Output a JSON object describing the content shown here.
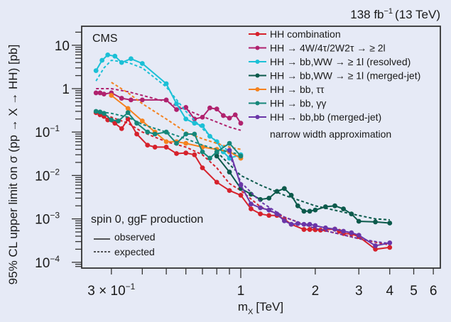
{
  "chart_data": {
    "type": "line",
    "experiment_label": "CMS",
    "lumi_label": "138 fb",
    "lumi_exp": "−1",
    "lumi_energy": "(13 TeV)",
    "xlabel_main": "m",
    "xlabel_sub": "X",
    "xlabel_unit": "[TeV]",
    "ylabel": "95% CL upper limit on σ (pp → X → HH) [pb]",
    "xscale": "log",
    "yscale": "log",
    "xlim": [
      0.25,
      6.5
    ],
    "ylim": [
      7e-05,
      30
    ],
    "x_ticks": [
      {
        "value": 0.3,
        "label": "3 × 10",
        "exp": "−1"
      },
      {
        "value": 1,
        "label": "1",
        "exp": ""
      },
      {
        "value": 2,
        "label": "2",
        "exp": ""
      },
      {
        "value": 3,
        "label": "3",
        "exp": ""
      },
      {
        "value": 4,
        "label": "4",
        "exp": ""
      },
      {
        "value": 5,
        "label": "5",
        "exp": ""
      },
      {
        "value": 6,
        "label": "6",
        "exp": ""
      }
    ],
    "y_ticks": [
      {
        "value": 10,
        "label": "10",
        "exp": ""
      },
      {
        "value": 1,
        "label": "1",
        "exp": ""
      },
      {
        "value": 0.1,
        "label": "10",
        "exp": "−1"
      },
      {
        "value": 0.01,
        "label": "10",
        "exp": "−2"
      },
      {
        "value": 0.001,
        "label": "10",
        "exp": "−3"
      },
      {
        "value": 0.0001,
        "label": "10",
        "exp": "−4"
      }
    ],
    "annotation_title": "spin 0, ggF production",
    "style_legend": [
      {
        "style": "solid",
        "label": "observed"
      },
      {
        "style": "dashed",
        "label": "expected"
      }
    ],
    "legend_note": "narrow width approximation",
    "legend_position": "top-right",
    "series": [
      {
        "name": "HH combination",
        "color": "#d6222c",
        "observed": {
          "x": [
            0.26,
            0.27,
            0.28,
            0.29,
            0.31,
            0.33,
            0.35,
            0.38,
            0.42,
            0.45,
            0.5,
            0.55,
            0.6,
            0.65,
            0.7,
            0.8,
            0.9,
            1.0,
            1.1,
            1.2,
            1.3,
            1.4,
            1.5,
            1.6,
            1.8,
            1.9,
            2.0,
            2.1,
            2.2,
            2.4,
            2.5,
            2.6,
            2.8,
            3.0,
            3.5,
            4.0
          ],
          "y": [
            0.28,
            0.25,
            0.23,
            0.19,
            0.16,
            0.12,
            0.2,
            0.09,
            0.05,
            0.045,
            0.045,
            0.032,
            0.033,
            0.03,
            0.015,
            0.007,
            0.0045,
            0.0035,
            0.0017,
            0.0013,
            0.0012,
            0.0012,
            0.00098,
            0.00075,
            0.00057,
            0.00057,
            0.00056,
            0.00055,
            0.00057,
            0.00058,
            0.00052,
            0.00046,
            0.00045,
            0.00039,
            0.0002,
            0.00022
          ]
        },
        "expected": {
          "x": [
            0.26,
            0.3,
            0.35,
            0.4,
            0.5,
            0.6,
            0.7,
            0.8,
            0.9,
            1.0,
            1.2,
            1.5,
            2.0,
            2.5,
            3.0,
            3.5,
            4.0
          ],
          "y": [
            0.28,
            0.22,
            0.16,
            0.1,
            0.06,
            0.045,
            0.03,
            0.015,
            0.0065,
            0.0045,
            0.0019,
            0.0011,
            0.0006,
            0.00045,
            0.00035,
            0.00029,
            0.00025
          ]
        }
      },
      {
        "name": "HH → 4W/4τ/2W2τ → ≥ 2l",
        "color": "#b0226e",
        "observed": {
          "x": [
            0.26,
            0.27,
            0.28,
            0.3,
            0.33,
            0.36,
            0.4,
            0.5,
            0.55,
            0.6,
            0.65,
            0.7,
            0.75,
            0.8,
            0.85,
            0.9,
            0.95,
            1.0
          ],
          "y": [
            0.8,
            0.8,
            0.75,
            0.8,
            0.6,
            0.55,
            0.55,
            0.55,
            0.33,
            0.37,
            0.2,
            0.22,
            0.36,
            0.34,
            0.24,
            0.21,
            0.25,
            0.16
          ]
        },
        "expected": {
          "x": [
            0.26,
            0.3,
            0.35,
            0.4,
            0.5,
            0.6,
            0.7,
            0.8,
            0.9,
            1.0
          ],
          "y": [
            1.0,
            1.0,
            0.85,
            0.7,
            0.5,
            0.33,
            0.23,
            0.17,
            0.13,
            0.11
          ]
        }
      },
      {
        "name": "HH → bb,WW → ≥ 1l (resolved)",
        "color": "#1cc0d6",
        "observed": {
          "x": [
            0.26,
            0.275,
            0.29,
            0.31,
            0.33,
            0.36,
            0.4,
            0.5,
            0.55,
            0.6,
            0.65,
            0.7,
            0.75,
            0.8,
            0.85,
            0.9,
            1.0
          ],
          "y": [
            2.6,
            4.5,
            6.0,
            5.6,
            4.0,
            4.9,
            3.8,
            1.3,
            0.45,
            0.2,
            0.16,
            0.14,
            0.08,
            0.06,
            0.035,
            0.025,
            0.03
          ]
        },
        "expected": {
          "x": [
            0.26,
            0.28,
            0.3,
            0.35,
            0.4,
            0.5,
            0.6,
            0.7,
            0.8,
            0.9,
            1.0
          ],
          "y": [
            1.5,
            3.0,
            4.5,
            4.0,
            3.0,
            1.1,
            0.3,
            0.12,
            0.06,
            0.035,
            0.025
          ]
        }
      },
      {
        "name": "HH → bb,WW → ≥ 1l (merged-jet)",
        "color": "#0c5a4c",
        "observed": {
          "x": [
            0.8,
            0.9,
            1.0,
            1.1,
            1.2,
            1.3,
            1.4,
            1.5,
            1.6,
            1.7,
            1.8,
            1.9,
            2.0,
            2.2,
            2.4,
            2.6,
            2.8,
            3.0,
            3.5,
            4.0
          ],
          "y": [
            0.028,
            0.012,
            0.005,
            0.0037,
            0.0028,
            0.003,
            0.0043,
            0.005,
            0.0035,
            0.002,
            0.0015,
            0.0015,
            0.0016,
            0.0019,
            0.002,
            0.0017,
            0.0013,
            0.00088,
            0.00085,
            0.0008
          ]
        },
        "expected": {
          "x": [
            0.8,
            1.0,
            1.2,
            1.5,
            2.0,
            2.5,
            3.0,
            3.5,
            4.0
          ],
          "y": [
            0.035,
            0.01,
            0.006,
            0.0035,
            0.002,
            0.0015,
            0.0012,
            0.001,
            0.00095
          ]
        }
      },
      {
        "name": "HH → bb, ττ",
        "color": "#f5821f",
        "observed": {
          "x": [
            0.3,
            0.35,
            0.4,
            0.45,
            0.5,
            0.55,
            0.6,
            0.7,
            0.8,
            0.9,
            1.0
          ],
          "y": [
            0.7,
            0.35,
            0.18,
            0.1,
            0.06,
            0.06,
            0.055,
            0.045,
            0.04,
            0.035,
            0.025
          ]
        },
        "expected": {
          "x": [
            0.3,
            0.35,
            0.4,
            0.5,
            0.6,
            0.7,
            0.8,
            0.9,
            1.0
          ],
          "y": [
            1.4,
            0.8,
            0.45,
            0.2,
            0.1,
            0.07,
            0.055,
            0.045,
            0.04
          ]
        }
      },
      {
        "name": "HH → bb, γγ",
        "color": "#16877a",
        "observed": {
          "x": [
            0.26,
            0.27,
            0.28,
            0.3,
            0.32,
            0.35,
            0.38,
            0.42,
            0.45,
            0.5,
            0.55,
            0.6,
            0.65,
            0.7,
            0.75,
            0.8,
            0.9,
            1.0
          ],
          "y": [
            0.3,
            0.29,
            0.27,
            0.19,
            0.18,
            0.28,
            0.16,
            0.1,
            0.09,
            0.1,
            0.055,
            0.09,
            0.09,
            0.035,
            0.025,
            0.035,
            0.055,
            0.028
          ]
        },
        "expected": {
          "x": [
            0.26,
            0.3,
            0.35,
            0.4,
            0.5,
            0.6,
            0.7,
            0.8,
            0.9,
            1.0
          ],
          "y": [
            0.3,
            0.27,
            0.22,
            0.15,
            0.1,
            0.07,
            0.05,
            0.04,
            0.035,
            0.03
          ]
        }
      },
      {
        "name": "HH → bb,bb (merged-jet)",
        "color": "#6a36a8",
        "observed": {
          "x": [
            0.9,
            1.0,
            1.1,
            1.2,
            1.3,
            1.4,
            1.5,
            1.6,
            1.7,
            1.8,
            1.9,
            2.0,
            2.2,
            2.4,
            2.6,
            2.8,
            3.0,
            3.5,
            4.0
          ],
          "y": [
            0.038,
            0.006,
            0.0022,
            0.0018,
            0.0016,
            0.0013,
            0.0009,
            0.00075,
            0.00078,
            0.00075,
            0.00075,
            0.0007,
            0.00062,
            0.00058,
            0.00052,
            0.00048,
            0.00042,
            0.00024,
            0.00028
          ]
        },
        "expected": {
          "x": [
            0.9,
            1.0,
            1.2,
            1.5,
            2.0,
            2.5,
            3.0,
            3.5,
            4.0
          ],
          "y": [
            0.03,
            0.007,
            0.0025,
            0.0011,
            0.0006,
            0.00045,
            0.00035,
            0.0003,
            0.00027
          ]
        }
      }
    ]
  }
}
